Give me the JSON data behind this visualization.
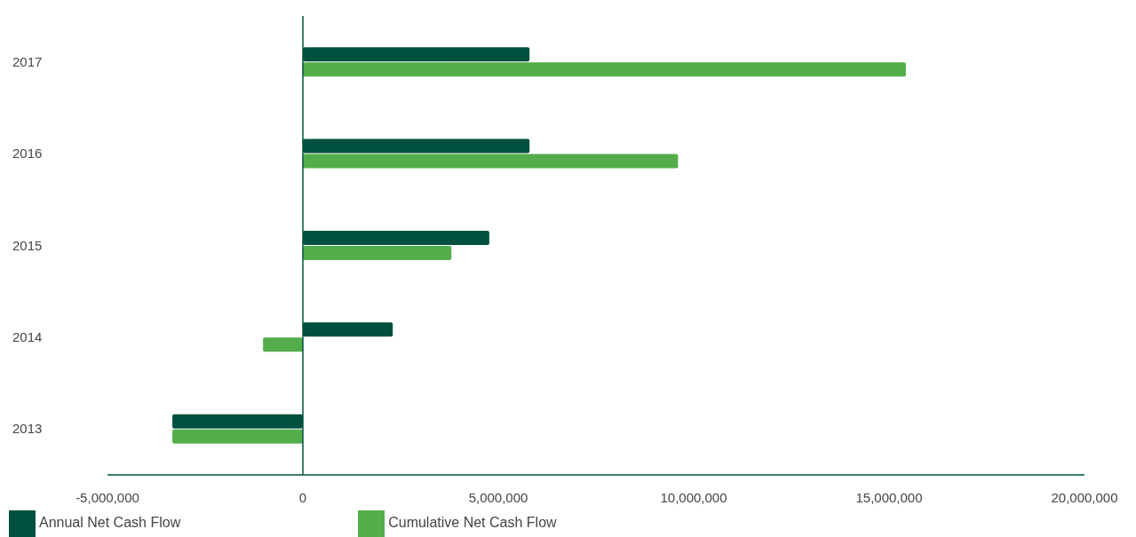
{
  "chart_data": {
    "type": "bar",
    "orientation": "horizontal",
    "categories": [
      "2017",
      "2016",
      "2015",
      "2014",
      "2013"
    ],
    "series": [
      {
        "name": "Annual Net Cash Flow",
        "color": "#00503f",
        "values": [
          5800000,
          5800000,
          4770000,
          2300000,
          -3340000
        ]
      },
      {
        "name": "Cumulative Net Cash Flow",
        "color": "#52ad4a",
        "values": [
          15430000,
          9600000,
          3800000,
          -1020000,
          -3340000
        ]
      }
    ],
    "xlim": [
      -5000000,
      20000000
    ],
    "xticks": [
      {
        "value": -5000000,
        "label": "-5,000,000"
      },
      {
        "value": 0,
        "label": "0"
      },
      {
        "value": 5000000,
        "label": "5,000,000"
      },
      {
        "value": 10000000,
        "label": "10,000,000"
      },
      {
        "value": 15000000,
        "label": "15,000,000"
      },
      {
        "value": 20000000,
        "label": "20,000,000"
      }
    ],
    "grid": false,
    "legend": "bottom left"
  }
}
